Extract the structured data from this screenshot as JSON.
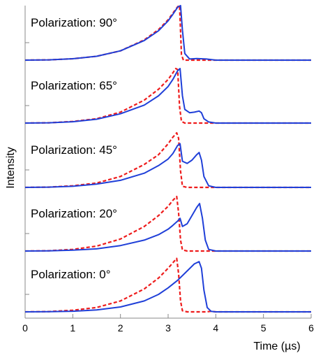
{
  "chart_data": {
    "type": "line",
    "title": "",
    "xlabel": "Time (µs)",
    "ylabel": "Intensity",
    "xlim": [
      0,
      6
    ],
    "xticks": [
      0,
      1,
      2,
      3,
      4,
      5,
      6
    ],
    "legend": "none",
    "grid": false,
    "series_styles": [
      {
        "color": "#1f3fd8",
        "dash": "solid"
      },
      {
        "color": "#ee1c1c",
        "dash": "dashed"
      }
    ],
    "panels": [
      {
        "label": "Polarization: 90°",
        "series": [
          {
            "x": [
              0,
              0.5,
              1,
              1.5,
              2,
              2.5,
              2.8,
              3.0,
              3.1,
              3.2,
              3.26,
              3.3,
              3.35,
              3.45,
              3.6,
              3.8,
              4,
              5,
              6
            ],
            "y": [
              0,
              0.005,
              0.025,
              0.07,
              0.17,
              0.36,
              0.54,
              0.72,
              0.84,
              0.97,
              1.0,
              0.55,
              0.12,
              0.02,
              0.03,
              0.02,
              0,
              0,
              0
            ]
          },
          {
            "x": [
              0,
              0.5,
              1,
              1.5,
              2,
              2.5,
              2.8,
              3.0,
              3.1,
              3.2,
              3.24,
              3.28,
              3.32,
              3.45,
              4,
              5,
              6
            ],
            "y": [
              0,
              0.005,
              0.025,
              0.07,
              0.17,
              0.37,
              0.56,
              0.74,
              0.86,
              0.98,
              1.0,
              0.1,
              0.0,
              0.0,
              0,
              0,
              0
            ]
          }
        ]
      },
      {
        "label": "Polarization: 65°",
        "series": [
          {
            "x": [
              0,
              0.5,
              1,
              1.5,
              2,
              2.5,
              2.8,
              3.0,
              3.1,
              3.2,
              3.25,
              3.3,
              3.35,
              3.45,
              3.55,
              3.65,
              3.7,
              3.75,
              3.85,
              4,
              5,
              6
            ],
            "y": [
              0,
              0.005,
              0.025,
              0.07,
              0.17,
              0.33,
              0.5,
              0.67,
              0.8,
              0.96,
              1.0,
              0.5,
              0.25,
              0.19,
              0.2,
              0.22,
              0.19,
              0.08,
              0.02,
              0,
              0,
              0
            ]
          },
          {
            "x": [
              0,
              0.5,
              1,
              1.5,
              2,
              2.5,
              2.8,
              3.0,
              3.1,
              3.16,
              3.2,
              3.24,
              3.28,
              3.35,
              4,
              5,
              6
            ],
            "y": [
              0,
              0.005,
              0.03,
              0.08,
              0.2,
              0.42,
              0.62,
              0.8,
              0.92,
              1.0,
              0.98,
              0.3,
              0.03,
              0.0,
              0,
              0,
              0
            ]
          }
        ]
      },
      {
        "label": "Polarization: 45°",
        "series": [
          {
            "x": [
              0,
              0.5,
              1,
              1.5,
              2,
              2.5,
              2.8,
              3.0,
              3.1,
              3.2,
              3.25,
              3.3,
              3.4,
              3.5,
              3.6,
              3.65,
              3.7,
              3.75,
              3.85,
              4,
              5,
              6
            ],
            "y": [
              0,
              0.005,
              0.02,
              0.06,
              0.13,
              0.26,
              0.4,
              0.52,
              0.62,
              0.77,
              0.8,
              0.48,
              0.44,
              0.5,
              0.6,
              0.64,
              0.5,
              0.2,
              0.03,
              0.0,
              0,
              0
            ]
          },
          {
            "x": [
              0,
              0.5,
              1,
              1.5,
              2,
              2.5,
              2.8,
              3.0,
              3.1,
              3.18,
              3.22,
              3.26,
              3.3,
              3.4,
              4,
              5,
              6
            ],
            "y": [
              0,
              0.005,
              0.03,
              0.08,
              0.2,
              0.42,
              0.6,
              0.8,
              0.92,
              1.0,
              0.9,
              0.3,
              0.02,
              0.0,
              0,
              0,
              0
            ]
          }
        ]
      },
      {
        "label": "Polarization: 20°",
        "series": [
          {
            "x": [
              0,
              0.5,
              1,
              1.5,
              2,
              2.5,
              2.8,
              3.0,
              3.1,
              3.2,
              3.25,
              3.3,
              3.4,
              3.5,
              3.6,
              3.66,
              3.72,
              3.78,
              3.85,
              4,
              5,
              6
            ],
            "y": [
              0,
              0.004,
              0.015,
              0.04,
              0.1,
              0.2,
              0.3,
              0.4,
              0.47,
              0.55,
              0.6,
              0.45,
              0.5,
              0.65,
              0.8,
              0.87,
              0.6,
              0.2,
              0.03,
              0.0,
              0,
              0
            ]
          },
          {
            "x": [
              0,
              0.5,
              1,
              1.5,
              2,
              2.5,
              2.8,
              3.0,
              3.1,
              3.18,
              3.22,
              3.26,
              3.3,
              3.4,
              4,
              5,
              6
            ],
            "y": [
              0,
              0.005,
              0.03,
              0.09,
              0.22,
              0.45,
              0.65,
              0.82,
              0.93,
              1.0,
              0.7,
              0.2,
              0.02,
              0.0,
              0,
              0,
              0
            ]
          }
        ]
      },
      {
        "label": "Polarization: 0°",
        "series": [
          {
            "x": [
              0,
              0.5,
              1,
              1.5,
              2,
              2.5,
              2.8,
              3.0,
              3.2,
              3.4,
              3.55,
              3.65,
              3.7,
              3.75,
              3.82,
              3.9,
              4,
              5,
              6
            ],
            "y": [
              0,
              0.003,
              0.012,
              0.035,
              0.09,
              0.2,
              0.32,
              0.44,
              0.58,
              0.75,
              0.88,
              0.92,
              0.8,
              0.4,
              0.08,
              0.01,
              0,
              0,
              0
            ]
          },
          {
            "x": [
              0,
              0.5,
              1,
              1.5,
              2,
              2.5,
              2.8,
              3.0,
              3.1,
              3.18,
              3.22,
              3.26,
              3.3,
              3.4,
              3.8,
              3.9,
              4,
              5,
              6
            ],
            "y": [
              0,
              0.005,
              0.03,
              0.08,
              0.2,
              0.42,
              0.62,
              0.8,
              0.9,
              0.98,
              0.7,
              0.2,
              0.02,
              0.0,
              0.0,
              0.01,
              0,
              0,
              0
            ]
          }
        ]
      }
    ]
  }
}
